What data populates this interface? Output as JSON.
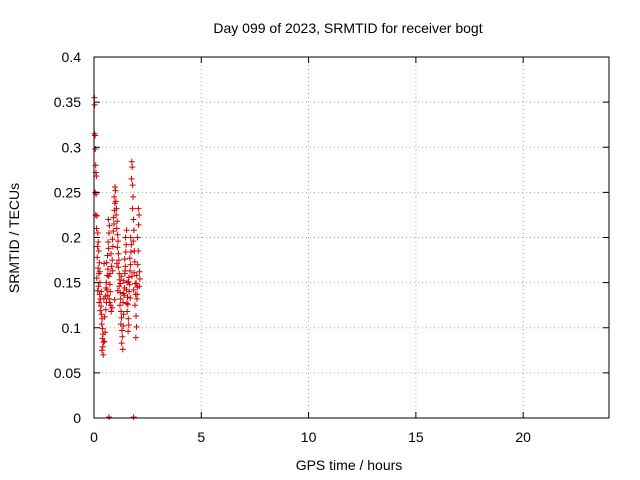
{
  "chart_data": {
    "type": "scatter",
    "title": "Day 099 of 2023, SRMTID for receiver bogt",
    "xlabel": "GPS time / hours",
    "ylabel": "SRMTID / TECUs",
    "xlim": [
      0,
      24
    ],
    "ylim": [
      0,
      0.4
    ],
    "xticks": [
      0,
      5,
      10,
      15,
      20
    ],
    "xtick_labels": [
      "0",
      "5",
      "10",
      "15",
      "20"
    ],
    "yticks": [
      0,
      0.05,
      0.1,
      0.15,
      0.2,
      0.25,
      0.3,
      0.35,
      0.4
    ],
    "ytick_labels": [
      "0",
      "0.05",
      "0.1",
      "0.15",
      "0.2",
      "0.25",
      "0.3",
      "0.35",
      "0.4"
    ],
    "grid": true,
    "marker": "plus",
    "color": "#d40000",
    "series": [
      {
        "name": "SRMTID",
        "points": [
          [
            0.02,
            0.355
          ],
          [
            0.03,
            0.347
          ],
          [
            0.02,
            0.315
          ],
          [
            0.05,
            0.313
          ],
          [
            0.06,
            0.298
          ],
          [
            0.08,
            0.28
          ],
          [
            0.09,
            0.272
          ],
          [
            0.11,
            0.268
          ],
          [
            0.05,
            0.25
          ],
          [
            0.1,
            0.248
          ],
          [
            0.08,
            0.225
          ],
          [
            0.14,
            0.224
          ],
          [
            0.12,
            0.21
          ],
          [
            0.18,
            0.205
          ],
          [
            0.2,
            0.195
          ],
          [
            0.16,
            0.19
          ],
          [
            0.22,
            0.185
          ],
          [
            0.15,
            0.178
          ],
          [
            0.25,
            0.172
          ],
          [
            0.19,
            0.166
          ],
          [
            0.23,
            0.16
          ],
          [
            0.13,
            0.155
          ],
          [
            0.28,
            0.15
          ],
          [
            0.21,
            0.146
          ],
          [
            0.17,
            0.141
          ],
          [
            0.26,
            0.137
          ],
          [
            0.3,
            0.132
          ],
          [
            0.24,
            0.128
          ],
          [
            0.33,
            0.124
          ],
          [
            0.29,
            0.119
          ],
          [
            0.35,
            0.115
          ],
          [
            0.38,
            0.11
          ],
          [
            0.36,
            0.104
          ],
          [
            0.4,
            0.099
          ],
          [
            0.42,
            0.093
          ],
          [
            0.39,
            0.088
          ],
          [
            0.44,
            0.084
          ],
          [
            0.41,
            0.079
          ],
          [
            0.37,
            0.075
          ],
          [
            0.43,
            0.07
          ],
          [
            0.48,
            0.085
          ],
          [
            0.52,
            0.095
          ],
          [
            0.5,
            0.112
          ],
          [
            0.55,
            0.12
          ],
          [
            0.58,
            0.128
          ],
          [
            0.53,
            0.135
          ],
          [
            0.6,
            0.142
          ],
          [
            0.57,
            0.15
          ],
          [
            0.62,
            0.158
          ],
          [
            0.65,
            0.165
          ],
          [
            0.59,
            0.172
          ],
          [
            0.63,
            0.18
          ],
          [
            0.68,
            0.188
          ],
          [
            0.66,
            0.195
          ],
          [
            0.7,
            0.205
          ],
          [
            0.72,
            0.213
          ],
          [
            0.67,
            0.22
          ],
          [
            0.74,
            0.148
          ],
          [
            0.76,
            0.14
          ],
          [
            0.71,
            0.132
          ],
          [
            0.78,
            0.125
          ],
          [
            0.8,
            0.118
          ],
          [
            0.75,
            0.16
          ],
          [
            0.82,
            0.168
          ],
          [
            0.85,
            0.175
          ],
          [
            0.79,
            0.182
          ],
          [
            0.88,
            0.19
          ],
          [
            0.86,
            0.198
          ],
          [
            0.9,
            0.207
          ],
          [
            0.93,
            0.215
          ],
          [
            0.91,
            0.222
          ],
          [
            0.95,
            0.23
          ],
          [
            0.97,
            0.238
          ],
          [
            0.94,
            0.245
          ],
          [
            1.0,
            0.252
          ],
          [
            0.98,
            0.256
          ],
          [
            1.02,
            0.24
          ],
          [
            1.05,
            0.232
          ],
          [
            1.03,
            0.225
          ],
          [
            1.08,
            0.218
          ],
          [
            1.06,
            0.21
          ],
          [
            1.1,
            0.203
          ],
          [
            1.12,
            0.196
          ],
          [
            1.09,
            0.189
          ],
          [
            1.14,
            0.182
          ],
          [
            1.16,
            0.175
          ],
          [
            1.13,
            0.167
          ],
          [
            1.18,
            0.16
          ],
          [
            1.2,
            0.153
          ],
          [
            1.17,
            0.146
          ],
          [
            1.22,
            0.139
          ],
          [
            1.24,
            0.132
          ],
          [
            1.21,
            0.125
          ],
          [
            1.26,
            0.118
          ],
          [
            1.28,
            0.111
          ],
          [
            1.25,
            0.104
          ],
          [
            1.3,
            0.097
          ],
          [
            1.32,
            0.09
          ],
          [
            1.29,
            0.083
          ],
          [
            1.34,
            0.076
          ],
          [
            1.36,
            0.102
          ],
          [
            1.38,
            0.115
          ],
          [
            1.35,
            0.128
          ],
          [
            1.4,
            0.136
          ],
          [
            1.42,
            0.144
          ],
          [
            1.39,
            0.152
          ],
          [
            1.44,
            0.16
          ],
          [
            1.46,
            0.168
          ],
          [
            1.43,
            0.176
          ],
          [
            1.48,
            0.184
          ],
          [
            1.5,
            0.192
          ],
          [
            1.47,
            0.2
          ],
          [
            1.52,
            0.208
          ],
          [
            1.54,
            0.15
          ],
          [
            1.51,
            0.142
          ],
          [
            1.56,
            0.134
          ],
          [
            1.58,
            0.126
          ],
          [
            1.55,
            0.118
          ],
          [
            1.6,
            0.11
          ],
          [
            1.62,
            0.103
          ],
          [
            1.59,
            0.096
          ],
          [
            1.64,
            0.14
          ],
          [
            1.66,
            0.148
          ],
          [
            1.63,
            0.156
          ],
          [
            1.68,
            0.163
          ],
          [
            1.7,
            0.17
          ],
          [
            1.67,
            0.177
          ],
          [
            1.72,
            0.184
          ],
          [
            1.74,
            0.192
          ],
          [
            1.71,
            0.2
          ],
          [
            1.76,
            0.284
          ],
          [
            1.78,
            0.278
          ],
          [
            1.75,
            0.265
          ],
          [
            1.8,
            0.258
          ],
          [
            1.82,
            0.245
          ],
          [
            1.79,
            0.232
          ],
          [
            1.84,
            0.22
          ],
          [
            1.86,
            0.208
          ],
          [
            1.83,
            0.196
          ],
          [
            1.88,
            0.185
          ],
          [
            1.9,
            0.173
          ],
          [
            1.87,
            0.161
          ],
          [
            1.92,
            0.149
          ],
          [
            1.94,
            0.137
          ],
          [
            1.91,
            0.125
          ],
          [
            1.96,
            0.113
          ],
          [
            1.98,
            0.101
          ],
          [
            1.95,
            0.089
          ],
          [
            2.0,
            0.132
          ],
          [
            2.02,
            0.145
          ],
          [
            1.99,
            0.158
          ],
          [
            2.04,
            0.17
          ],
          [
            2.06,
            0.185
          ],
          [
            2.03,
            0.2
          ],
          [
            2.08,
            0.214
          ],
          [
            2.1,
            0.225
          ],
          [
            2.07,
            0.232
          ],
          [
            2.12,
            0.162
          ],
          [
            2.14,
            0.154
          ],
          [
            2.11,
            0.146
          ],
          [
            0.34,
            0.14
          ],
          [
            0.46,
            0.132
          ],
          [
            0.56,
            0.144
          ],
          [
            0.64,
            0.136
          ],
          [
            0.73,
            0.128
          ],
          [
            0.84,
            0.122
          ],
          [
            0.96,
            0.131
          ],
          [
            1.11,
            0.141
          ],
          [
            1.23,
            0.149
          ],
          [
            1.37,
            0.138
          ],
          [
            1.53,
            0.127
          ],
          [
            1.69,
            0.133
          ],
          [
            1.85,
            0.142
          ],
          [
            2.01,
            0.137
          ],
          [
            0.27,
            0.162
          ],
          [
            0.47,
            0.171
          ],
          [
            0.69,
            0.157
          ],
          [
            0.87,
            0.163
          ],
          [
            1.07,
            0.171
          ],
          [
            1.27,
            0.157
          ],
          [
            1.45,
            0.163
          ],
          [
            1.61,
            0.151
          ],
          [
            1.77,
            0.157
          ],
          [
            1.97,
            0.149
          ],
          [
            0.7,
            0.001
          ],
          [
            1.85,
            0.001
          ]
        ]
      }
    ]
  }
}
